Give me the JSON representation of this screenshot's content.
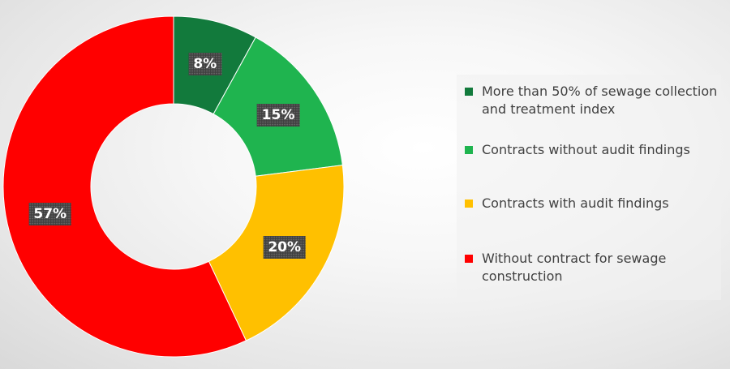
{
  "chart_data": {
    "type": "pie",
    "donut": true,
    "slices": [
      {
        "label": "More than 50% of sewage collection and treatment index",
        "value": 8,
        "display": "8%",
        "color": "#127a3c"
      },
      {
        "label": "Contracts without audit findings",
        "value": 15,
        "display": "15%",
        "color": "#1fb44f"
      },
      {
        "label": "Contracts with audit findings",
        "value": 20,
        "display": "20%",
        "color": "#ffc000"
      },
      {
        "label": "Without contract for sewage construction",
        "value": 57,
        "display": "57%",
        "color": "#ff0000"
      }
    ],
    "legend_position": "right"
  }
}
